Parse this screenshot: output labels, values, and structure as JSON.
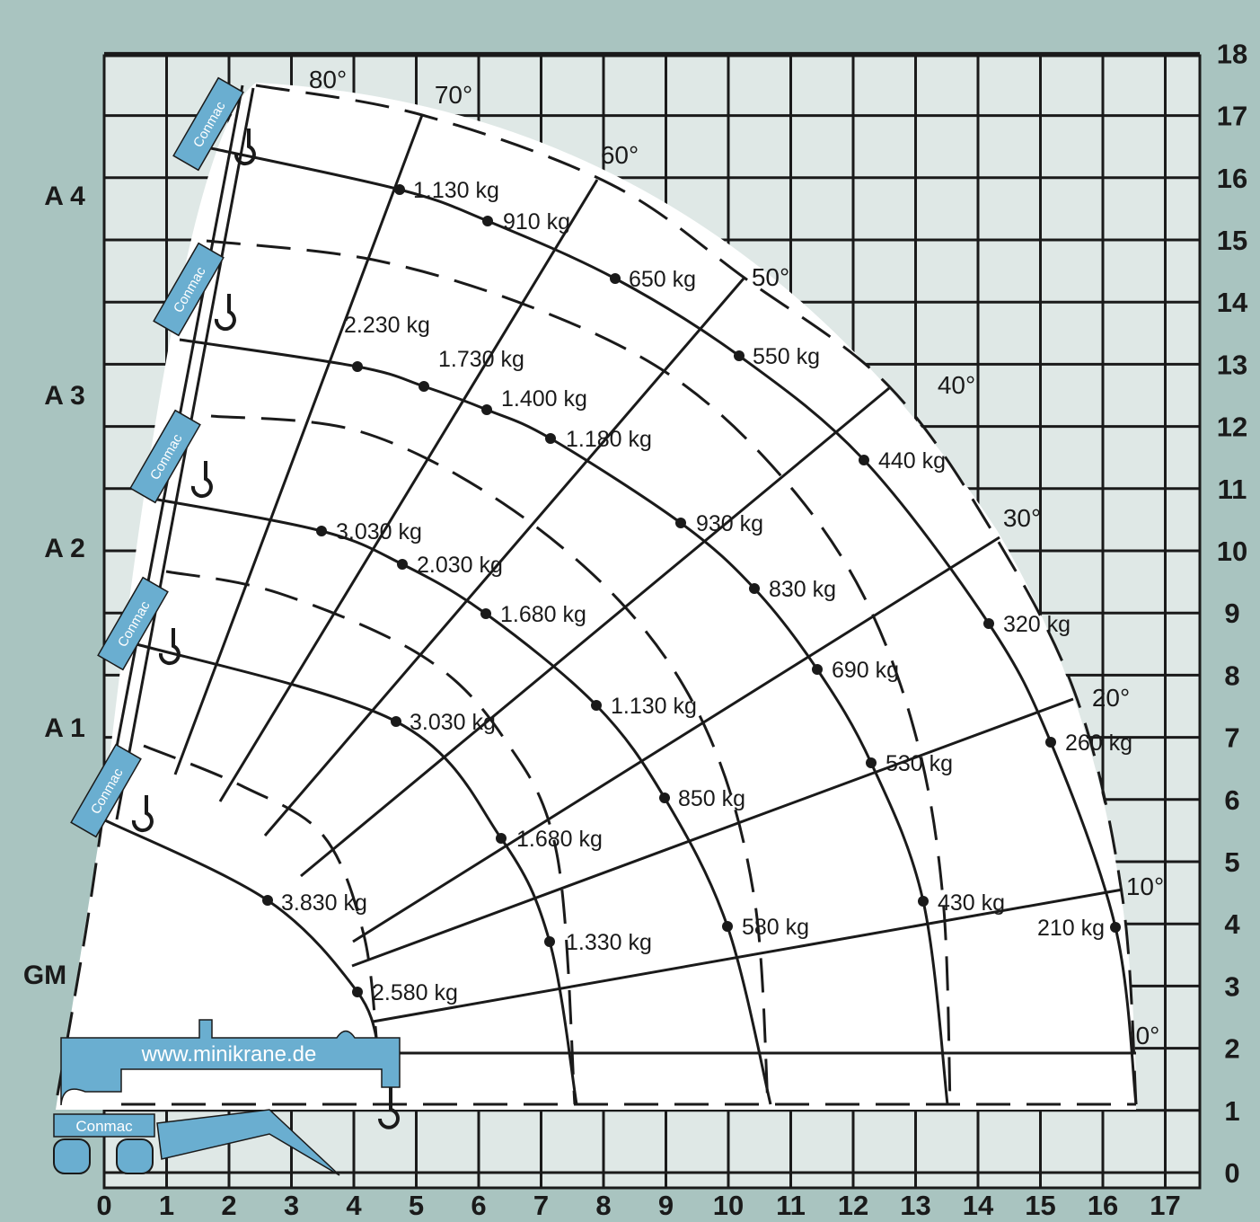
{
  "x_axis": {
    "ticks": [
      "0",
      "1",
      "2",
      "3",
      "4",
      "5",
      "6",
      "7",
      "8",
      "9",
      "10",
      "11",
      "12",
      "13",
      "14",
      "15",
      "16",
      "17"
    ]
  },
  "y_axis": {
    "ticks": [
      "0",
      "1",
      "2",
      "3",
      "4",
      "5",
      "6",
      "7",
      "8",
      "9",
      "10",
      "11",
      "12",
      "13",
      "14",
      "15",
      "16",
      "17",
      "18"
    ]
  },
  "sections": [
    "A 4",
    "A 3",
    "A 2",
    "A 1",
    "GM"
  ],
  "angles": [
    "80°",
    "70°",
    "60°",
    "50°",
    "40°",
    "30°",
    "20°",
    "10°",
    "0°"
  ],
  "loads": [
    [
      "1.130 kg",
      "910 kg",
      "650 kg",
      "550 kg",
      "440 kg",
      "320 kg",
      "260 kg",
      "210 kg"
    ],
    [
      "2.230 kg",
      "1.730 kg",
      "1.400 kg",
      "1.180 kg",
      "930 kg",
      "830 kg",
      "690 kg",
      "530 kg",
      "430 kg"
    ],
    [
      "3.030 kg",
      "2.030 kg",
      "1.680 kg",
      "1.130 kg",
      "850 kg",
      "580 kg"
    ],
    [
      "3.030 kg",
      "1.680 kg",
      "1.330 kg"
    ],
    [
      "3.830 kg",
      "2.580 kg"
    ]
  ],
  "website": "www.minikrane.de",
  "brand": "Conmac"
}
